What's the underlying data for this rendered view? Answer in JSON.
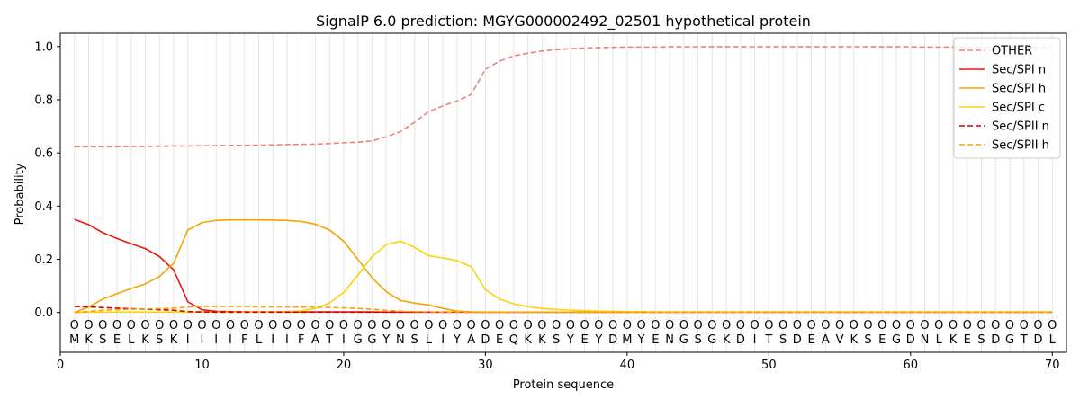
{
  "chart_data": {
    "type": "line",
    "title": "SignalP 6.0 prediction: MGYG000002492_02501 hypothetical protein",
    "xlabel": "Protein sequence",
    "ylabel": "Probability",
    "xlim": [
      0,
      71
    ],
    "ylim": [
      -0.15,
      1.05
    ],
    "x_ticks": [
      0,
      10,
      20,
      30,
      40,
      50,
      60,
      70
    ],
    "y_ticks": [
      0.0,
      0.2,
      0.4,
      0.6,
      0.8,
      1.0
    ],
    "legend_position": "top-right",
    "sequence": [
      "M",
      "K",
      "S",
      "E",
      "L",
      "K",
      "S",
      "K",
      "I",
      "I",
      "I",
      "I",
      "F",
      "L",
      "I",
      "I",
      "F",
      "A",
      "T",
      "I",
      "G",
      "G",
      "Y",
      "N",
      "S",
      "L",
      "I",
      "Y",
      "A",
      "D",
      "E",
      "Q",
      "K",
      "K",
      "S",
      "Y",
      "E",
      "Y",
      "D",
      "M",
      "Y",
      "E",
      "N",
      "G",
      "S",
      "G",
      "K",
      "D",
      "I",
      "T",
      "S",
      "D",
      "E",
      "A",
      "V",
      "K",
      "S",
      "E",
      "G",
      "D",
      "N",
      "L",
      "K",
      "E",
      "S",
      "D",
      "G",
      "T",
      "D",
      "L"
    ],
    "marker_label": "O",
    "series": [
      {
        "name": "OTHER",
        "color": "#f08080",
        "dashed": true,
        "values": [
          0.623,
          0.623,
          0.623,
          0.623,
          0.624,
          0.624,
          0.625,
          0.626,
          0.626,
          0.627,
          0.627,
          0.628,
          0.628,
          0.629,
          0.63,
          0.631,
          0.632,
          0.633,
          0.635,
          0.638,
          0.64,
          0.645,
          0.66,
          0.68,
          0.715,
          0.755,
          0.777,
          0.795,
          0.82,
          0.915,
          0.945,
          0.965,
          0.975,
          0.983,
          0.988,
          0.992,
          0.994,
          0.996,
          0.997,
          0.998,
          0.998,
          0.998,
          0.999,
          0.999,
          0.999,
          0.999,
          0.999,
          0.999,
          0.999,
          0.999,
          0.999,
          0.999,
          0.999,
          0.999,
          0.999,
          0.999,
          0.999,
          0.999,
          0.999,
          0.999,
          0.998,
          0.998,
          0.998,
          0.997,
          0.997,
          0.997,
          0.997,
          0.997,
          0.997,
          0.997
        ]
      },
      {
        "name": "Sec/SPI n",
        "color": "#e8190e",
        "dashed": false,
        "values": [
          0.35,
          0.33,
          0.3,
          0.278,
          0.258,
          0.24,
          0.21,
          0.16,
          0.04,
          0.01,
          0.004,
          0.003,
          0.002,
          0.002,
          0.002,
          0.002,
          0.002,
          0.002,
          0.002,
          0.002,
          0.002,
          0.002,
          0.001,
          0.001,
          0.001,
          0.001,
          0.001,
          0.001,
          0.001,
          0.001,
          0.001,
          0.001,
          0.001,
          0.001,
          0.001,
          0.001,
          0.001,
          0.001,
          0.001,
          0.001,
          0.001,
          0.001,
          0.001,
          0.001,
          0.001,
          0.001,
          0.001,
          0.001,
          0.001,
          0.001,
          0.001,
          0.001,
          0.001,
          0.001,
          0.001,
          0.001,
          0.001,
          0.001,
          0.001,
          0.001,
          0.001,
          0.001,
          0.001,
          0.001,
          0.001,
          0.001,
          0.001,
          0.001,
          0.001,
          0.001
        ]
      },
      {
        "name": "Sec/SPI h",
        "color": "#f6a400",
        "dashed": false,
        "values": [
          0.0,
          0.02,
          0.05,
          0.07,
          0.09,
          0.107,
          0.135,
          0.185,
          0.31,
          0.338,
          0.346,
          0.348,
          0.348,
          0.348,
          0.347,
          0.346,
          0.342,
          0.332,
          0.31,
          0.268,
          0.2,
          0.13,
          0.078,
          0.045,
          0.035,
          0.028,
          0.015,
          0.005,
          0.002,
          0.001,
          0.001,
          0.001,
          0.001,
          0.001,
          0.001,
          0.001,
          0.001,
          0.001,
          0.001,
          0.001,
          0.001,
          0.001,
          0.001,
          0.001,
          0.001,
          0.001,
          0.001,
          0.001,
          0.001,
          0.001,
          0.001,
          0.001,
          0.001,
          0.001,
          0.001,
          0.001,
          0.001,
          0.001,
          0.001,
          0.001,
          0.001,
          0.001,
          0.001,
          0.001,
          0.001,
          0.001,
          0.001,
          0.001,
          0.001,
          0.001
        ]
      },
      {
        "name": "Sec/SPI c",
        "color": "#fdd20a",
        "dashed": false,
        "values": [
          0.0,
          0.001,
          0.001,
          0.001,
          0.001,
          0.001,
          0.001,
          0.001,
          0.001,
          0.001,
          0.001,
          0.001,
          0.001,
          0.001,
          0.002,
          0.003,
          0.006,
          0.015,
          0.035,
          0.075,
          0.14,
          0.21,
          0.255,
          0.268,
          0.245,
          0.213,
          0.205,
          0.195,
          0.172,
          0.085,
          0.05,
          0.032,
          0.022,
          0.015,
          0.011,
          0.008,
          0.006,
          0.005,
          0.004,
          0.003,
          0.003,
          0.002,
          0.002,
          0.002,
          0.002,
          0.002,
          0.002,
          0.002,
          0.002,
          0.002,
          0.002,
          0.002,
          0.002,
          0.002,
          0.002,
          0.002,
          0.002,
          0.002,
          0.002,
          0.002,
          0.002,
          0.002,
          0.002,
          0.002,
          0.002,
          0.002,
          0.002,
          0.002,
          0.002,
          0.002
        ]
      },
      {
        "name": "Sec/SPII n",
        "color": "#d00000",
        "dashed": true,
        "values": [
          0.022,
          0.021,
          0.018,
          0.016,
          0.014,
          0.012,
          0.01,
          0.008,
          0.003,
          0.002,
          0.001,
          0.001,
          0.001,
          0.001,
          0.001,
          0.001,
          0.001,
          0.001,
          0.001,
          0.001,
          0.001,
          0.001,
          0.001,
          0.001,
          0.001,
          0.001,
          0.001,
          0.001,
          0.001,
          0.001,
          0.001,
          0.001,
          0.001,
          0.001,
          0.001,
          0.001,
          0.001,
          0.001,
          0.001,
          0.001,
          0.001,
          0.001,
          0.001,
          0.001,
          0.001,
          0.001,
          0.001,
          0.001,
          0.001,
          0.001,
          0.001,
          0.001,
          0.001,
          0.001,
          0.001,
          0.001,
          0.001,
          0.001,
          0.001,
          0.001,
          0.001,
          0.001,
          0.001,
          0.001,
          0.001,
          0.001,
          0.001,
          0.001,
          0.001,
          0.001
        ]
      },
      {
        "name": "Sec/SPII h",
        "color": "#f6a400",
        "dashed": true,
        "values": [
          0.0,
          0.004,
          0.008,
          0.01,
          0.012,
          0.013,
          0.014,
          0.016,
          0.02,
          0.022,
          0.022,
          0.022,
          0.022,
          0.021,
          0.021,
          0.021,
          0.02,
          0.02,
          0.019,
          0.017,
          0.015,
          0.012,
          0.008,
          0.005,
          0.003,
          0.002,
          0.001,
          0.001,
          0.001,
          0.001,
          0.001,
          0.001,
          0.001,
          0.001,
          0.001,
          0.001,
          0.001,
          0.001,
          0.001,
          0.001,
          0.001,
          0.001,
          0.001,
          0.001,
          0.001,
          0.001,
          0.001,
          0.001,
          0.001,
          0.001,
          0.001,
          0.001,
          0.001,
          0.001,
          0.001,
          0.001,
          0.001,
          0.001,
          0.001,
          0.001,
          0.001,
          0.001,
          0.001,
          0.001,
          0.001,
          0.001,
          0.001,
          0.001,
          0.001,
          0.001
        ]
      }
    ]
  }
}
